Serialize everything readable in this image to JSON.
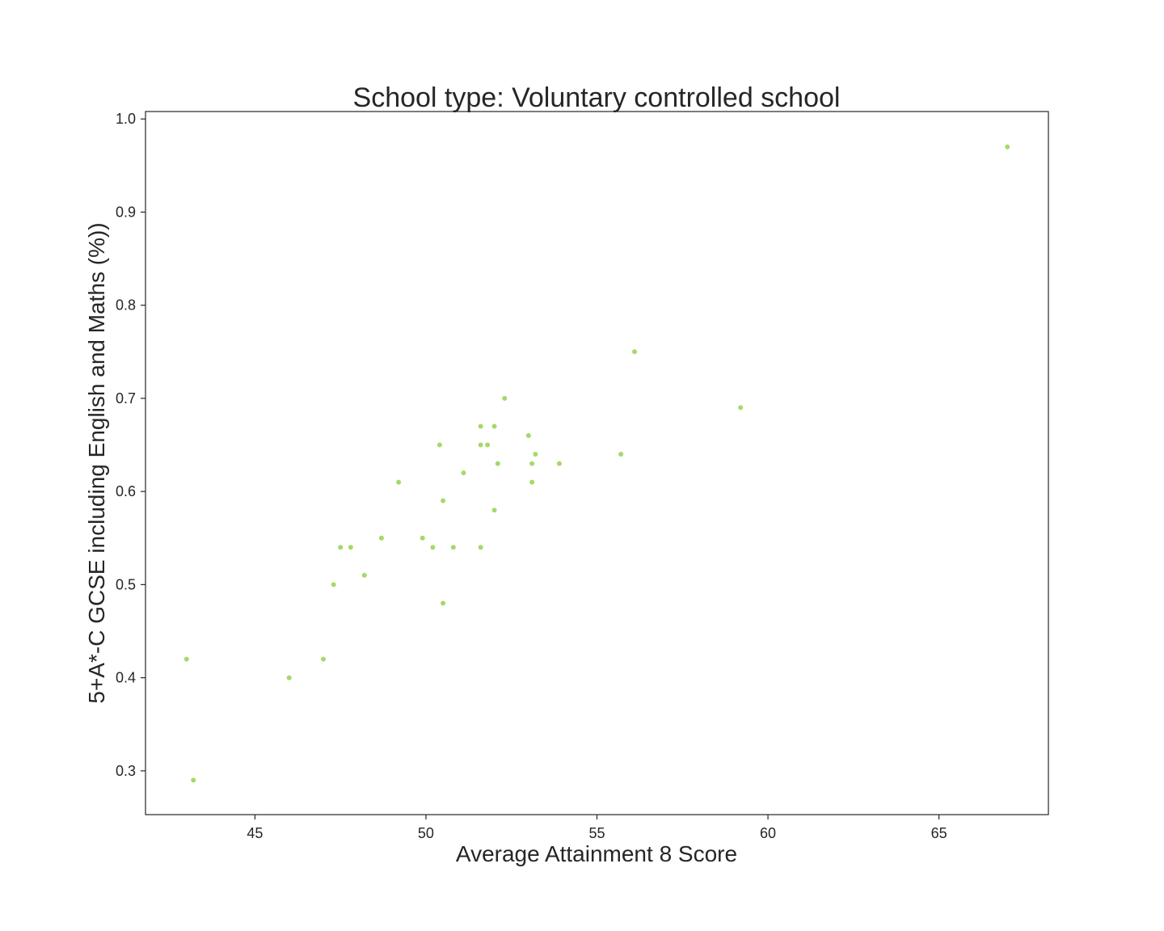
{
  "chart_data": {
    "type": "scatter",
    "title": "School type: Voluntary controlled school",
    "xlabel": "Average Attainment 8 Score",
    "ylabel": "5+A*-C GCSE including English and Maths (%))",
    "xlim": [
      41.8,
      68.2
    ],
    "ylim": [
      0.253,
      1.008
    ],
    "xticks": [
      45,
      50,
      55,
      60,
      65
    ],
    "yticks": [
      0.3,
      0.4,
      0.5,
      0.6,
      0.7,
      0.8,
      0.9,
      1.0
    ],
    "xtick_labels": [
      "45",
      "50",
      "55",
      "60",
      "65"
    ],
    "ytick_labels": [
      "0.3",
      "0.4",
      "0.5",
      "0.6",
      "0.7",
      "0.8",
      "0.9",
      "1.0"
    ],
    "grid": false,
    "marker_color": "#a6d96a",
    "points": [
      {
        "x": 43.0,
        "y": 0.42
      },
      {
        "x": 43.2,
        "y": 0.29
      },
      {
        "x": 46.0,
        "y": 0.4
      },
      {
        "x": 47.0,
        "y": 0.42
      },
      {
        "x": 47.3,
        "y": 0.5
      },
      {
        "x": 47.5,
        "y": 0.54
      },
      {
        "x": 47.8,
        "y": 0.54
      },
      {
        "x": 48.2,
        "y": 0.51
      },
      {
        "x": 48.7,
        "y": 0.55
      },
      {
        "x": 49.2,
        "y": 0.61
      },
      {
        "x": 49.9,
        "y": 0.55
      },
      {
        "x": 50.2,
        "y": 0.54
      },
      {
        "x": 50.4,
        "y": 0.65
      },
      {
        "x": 50.5,
        "y": 0.59
      },
      {
        "x": 50.5,
        "y": 0.48
      },
      {
        "x": 50.8,
        "y": 0.54
      },
      {
        "x": 51.1,
        "y": 0.62
      },
      {
        "x": 51.6,
        "y": 0.67
      },
      {
        "x": 51.6,
        "y": 0.65
      },
      {
        "x": 51.6,
        "y": 0.54
      },
      {
        "x": 51.8,
        "y": 0.65
      },
      {
        "x": 52.0,
        "y": 0.67
      },
      {
        "x": 52.0,
        "y": 0.58
      },
      {
        "x": 52.1,
        "y": 0.63
      },
      {
        "x": 52.3,
        "y": 0.7
      },
      {
        "x": 53.0,
        "y": 0.66
      },
      {
        "x": 53.1,
        "y": 0.63
      },
      {
        "x": 53.1,
        "y": 0.61
      },
      {
        "x": 53.2,
        "y": 0.64
      },
      {
        "x": 53.9,
        "y": 0.63
      },
      {
        "x": 55.7,
        "y": 0.64
      },
      {
        "x": 56.1,
        "y": 0.75
      },
      {
        "x": 59.2,
        "y": 0.69
      },
      {
        "x": 67.0,
        "y": 0.97
      }
    ]
  }
}
